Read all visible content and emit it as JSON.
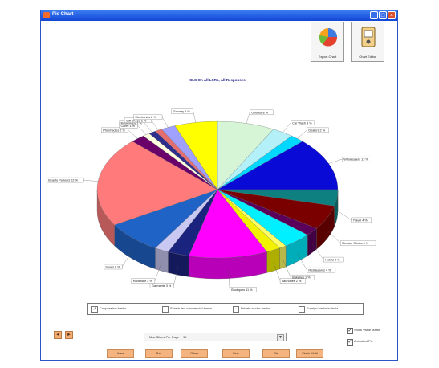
{
  "window": {
    "title": "Pie Chart",
    "controls": {
      "minimize": "_",
      "maximize": "□",
      "close": "×"
    }
  },
  "toolbar": {
    "export_label": "Export Chart",
    "chart_editor_label": "Chart Editor"
  },
  "chart_data": {
    "type": "pie",
    "title": "SLC On All LSRs, All Responses",
    "slices": [
      {
        "label": "Oriental 8 %",
        "value": 8,
        "color": "#d6f5d6"
      },
      {
        "label": "Car Wash 3 %",
        "value": 3,
        "color": "#b3f0f7"
      },
      {
        "label": "Dealers 2 %",
        "value": 2,
        "color": "#00d8ff"
      },
      {
        "label": "Wholesalers 13 %",
        "value": 13,
        "color": "#0a0ad6"
      },
      {
        "label": "Travel 4 %",
        "value": 4,
        "color": "#0f8080"
      },
      {
        "label": "Medical Clinics 6 %",
        "value": 6,
        "color": "#7a0000"
      },
      {
        "label": "Hotels 2 %",
        "value": 2,
        "color": "#5a005a"
      },
      {
        "label": "Restaurants 4 %",
        "value": 4,
        "color": "#00f0ff"
      },
      {
        "label": "Bakeries 1 %",
        "value": 1,
        "color": "#ffff66"
      },
      {
        "label": "Laundries 2 %",
        "value": 2,
        "color": "#f2f200"
      },
      {
        "label": "Boutiques 11 %",
        "value": 11,
        "color": "#ff00ff"
      },
      {
        "label": "Garments 3 %",
        "value": 3,
        "color": "#1a237e"
      },
      {
        "label": "Hardware 2 %",
        "value": 2,
        "color": "#c8c8f2"
      },
      {
        "label": "Shoes 8 %",
        "value": 8,
        "color": "#1f63c6"
      },
      {
        "label": "Beauty Parlours 22 %",
        "value": 22,
        "color": "#ff7b7b"
      },
      {
        "label": "Pharmacies 2 %",
        "value": 2,
        "color": "#6a006a"
      },
      {
        "label": "Cafes 1 %",
        "value": 1,
        "color": "#ffffe0"
      },
      {
        "label": "Bookshops 1 %",
        "value": 1,
        "color": "#2e2e8c"
      },
      {
        "label": "Gift Shops 1 %",
        "value": 1,
        "color": "#e46e6e"
      },
      {
        "label": "Electronics 2 %",
        "value": 2,
        "color": "#a0a0ff"
      },
      {
        "label": "Grocery 6 %",
        "value": 6,
        "color": "#ffff00"
      }
    ]
  },
  "legend": {
    "items": [
      {
        "label": "Cooperative banks",
        "checked": true,
        "mark": "✓"
      },
      {
        "label": "Scheduled commercial banks",
        "checked": false,
        "mark": ""
      },
      {
        "label": "Private sector banks",
        "checked": false,
        "mark": ""
      },
      {
        "label": "Foreign banks in India",
        "checked": false,
        "mark": ""
      }
    ]
  },
  "pager": {
    "prev": "◄",
    "next": "►"
  },
  "selector": {
    "label": "Max Slices Per Page",
    "value": "10",
    "arrow": "▼"
  },
  "options": {
    "show_value_marks": "Show Value Marks",
    "show_value_checked": "✓",
    "animated_pie": "Animated Pie",
    "animated_checked": "✓"
  },
  "chart_types": [
    "Area",
    "Bar",
    "Other",
    "Line",
    "Pie",
    "Stack Multi"
  ]
}
